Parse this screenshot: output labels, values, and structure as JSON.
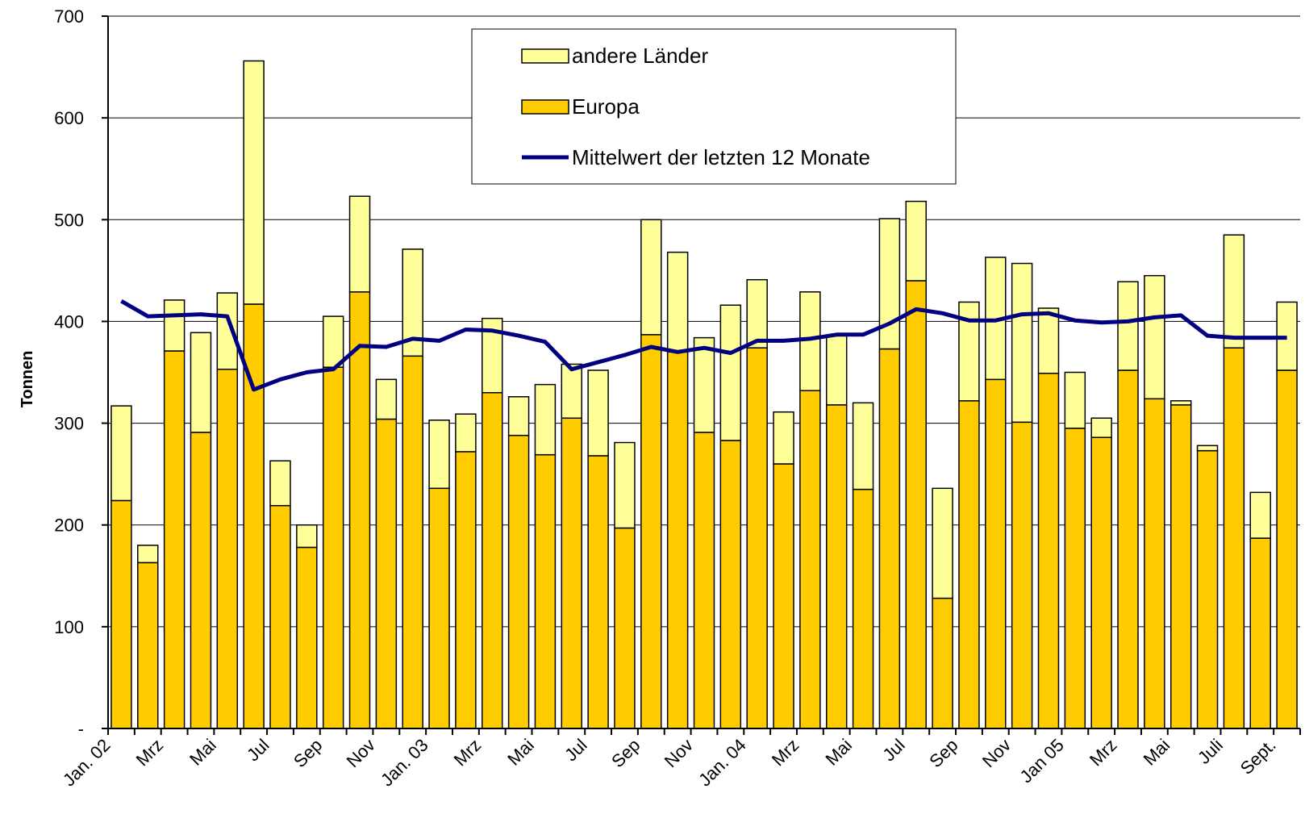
{
  "chart_data": {
    "type": "stacked-bar-line",
    "y_label": "Tonnen",
    "categories": [
      "Jan. 02",
      null,
      "Mrz",
      null,
      "Mai",
      null,
      "Jul",
      null,
      "Sep",
      null,
      "Nov",
      null,
      "Jan. 03",
      null,
      "Mrz",
      null,
      "Mai",
      null,
      "Jul",
      null,
      "Sep",
      null,
      "Nov",
      null,
      "Jan. 04",
      null,
      "Mrz",
      null,
      "Mai",
      null,
      "Jul",
      null,
      "Sep",
      null,
      "Nov",
      null,
      "Jan 05",
      null,
      "Mrz",
      null,
      "Mai",
      null,
      "Juli",
      null,
      "Sept."
    ],
    "series": [
      {
        "name": "Europa",
        "color": "#ffcc00",
        "values": [
          224,
          163,
          371,
          291,
          353,
          417,
          219,
          178,
          355,
          429,
          304,
          366,
          236,
          272,
          330,
          288,
          269,
          305,
          268,
          197,
          387,
          370,
          291,
          283,
          374,
          260,
          332,
          318,
          235,
          373,
          440,
          128,
          322,
          343,
          301,
          349,
          295,
          286,
          352,
          324,
          318,
          273,
          374,
          187,
          352
        ]
      },
      {
        "name": "andere Länder",
        "color": "#ffff99",
        "values": [
          93,
          17,
          50,
          98,
          75,
          239,
          44,
          22,
          50,
          94,
          39,
          105,
          67,
          37,
          73,
          38,
          69,
          53,
          84,
          84,
          113,
          98,
          93,
          133,
          67,
          51,
          97,
          68,
          85,
          128,
          78,
          108,
          97,
          120,
          156,
          64,
          55,
          19,
          87,
          121,
          4,
          5,
          111,
          45,
          67
        ]
      }
    ],
    "line": {
      "name": "Mittelwert der letzten 12 Monate",
      "color": "#000080",
      "values": [
        420,
        405,
        406,
        407,
        405,
        333,
        343,
        350,
        353,
        376,
        375,
        383,
        381,
        392,
        391,
        386,
        380,
        353,
        360,
        367,
        375,
        370,
        374,
        369,
        381,
        381,
        383,
        387,
        387,
        398,
        412,
        408,
        401,
        401,
        407,
        408,
        401,
        399,
        400,
        404,
        406,
        386,
        384,
        384,
        384
      ]
    },
    "ylim": [
      0,
      700
    ],
    "yticks": [
      {
        "value": 0,
        "label": "-"
      },
      100,
      200,
      300,
      400,
      500,
      600,
      700
    ],
    "grid": true
  }
}
